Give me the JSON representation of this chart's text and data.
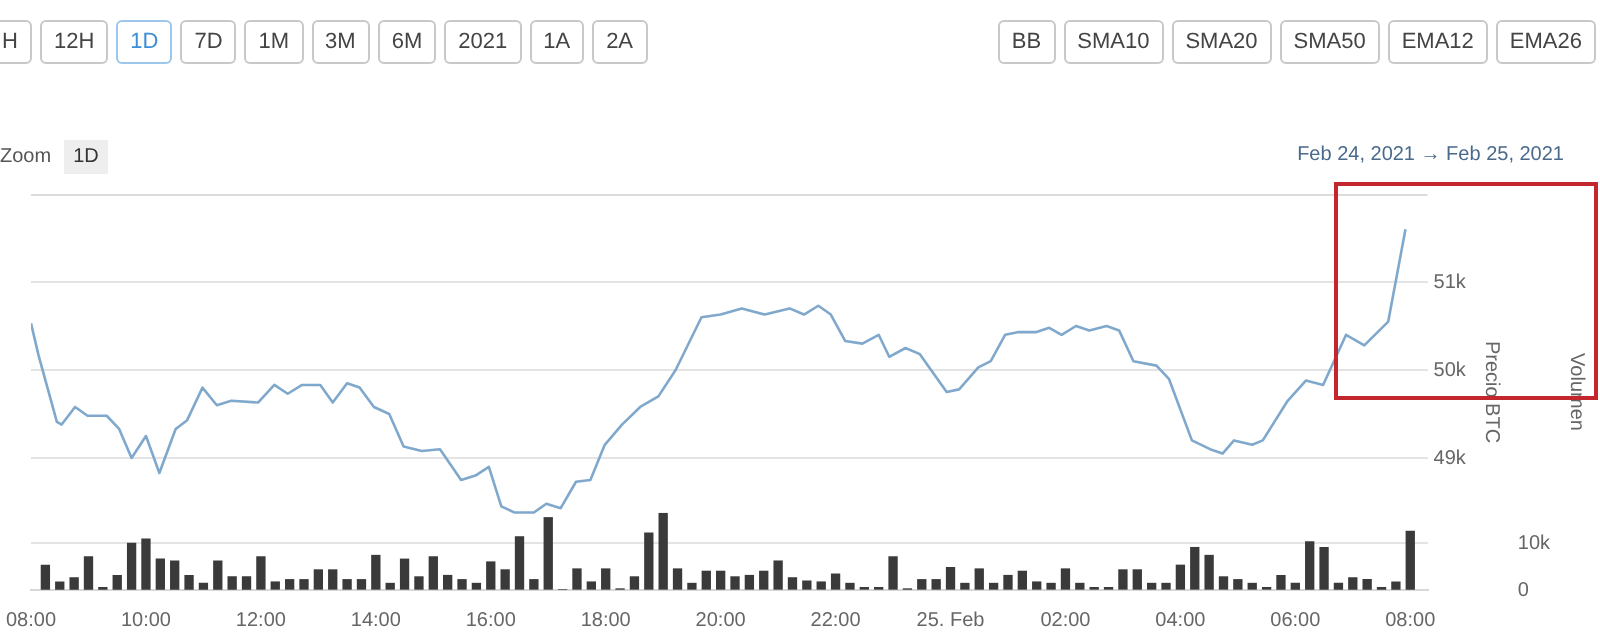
{
  "chart_data": {
    "type": "line",
    "ylabel": "Precio BTC",
    "y2label": "Volumen",
    "annotations": [
      "H",
      "12H",
      "1D",
      "7D",
      "1M",
      "3M",
      "6M",
      "2021",
      "1A",
      "2A",
      "BB",
      "SMA10",
      "SMA20",
      "SMA50",
      "EMA12",
      "EMA26",
      "Zoom",
      "1D",
      "Feb 24, 2021  →  Feb 25, 2021"
    ],
    "xlim": [
      "2021-02-24T08:00",
      "2021-02-25T08:18"
    ],
    "xticks": [
      {
        "value": "2021-02-24T08:00",
        "label": "08:00"
      },
      {
        "value": "2021-02-24T10:00",
        "label": "10:00"
      },
      {
        "value": "2021-02-24T12:00",
        "label": "12:00"
      },
      {
        "value": "2021-02-24T14:00",
        "label": "14:00"
      },
      {
        "value": "2021-02-24T16:00",
        "label": "16:00"
      },
      {
        "value": "2021-02-24T18:00",
        "label": "18:00"
      },
      {
        "value": "2021-02-24T20:00",
        "label": "20:00"
      },
      {
        "value": "2021-02-24T22:00",
        "label": "22:00"
      },
      {
        "value": "2021-02-25T00:00",
        "label": "25. Feb"
      },
      {
        "value": "2021-02-25T02:00",
        "label": "02:00"
      },
      {
        "value": "2021-02-25T04:00",
        "label": "04:00"
      },
      {
        "value": "2021-02-25T06:00",
        "label": "06:00"
      },
      {
        "value": "2021-02-25T08:00",
        "label": "08:00"
      }
    ],
    "ylim": [
      47500,
      52000
    ],
    "yticks": [
      {
        "value": 49000,
        "label": "49k"
      },
      {
        "value": 50000,
        "label": "50k"
      },
      {
        "value": 51000,
        "label": "51k"
      }
    ],
    "y2lim": [
      0,
      85000
    ],
    "y2ticks": [
      {
        "value": 0,
        "label": "0"
      },
      {
        "value": 10000,
        "label": "10k"
      }
    ],
    "grid": "y",
    "legend": false,
    "marker": "none",
    "series": [
      {
        "color": "#7fa8cc",
        "x": [
          "2021-02-24T08:00",
          "2021-02-24T08:08",
          "2021-02-24T08:27",
          "2021-02-24T08:32",
          "2021-02-24T08:46",
          "2021-02-24T08:59",
          "2021-02-24T09:19",
          "2021-02-24T09:32",
          "2021-02-24T09:45",
          "2021-02-24T10:00",
          "2021-02-24T10:14",
          "2021-02-24T10:31",
          "2021-02-24T10:43",
          "2021-02-24T10:59",
          "2021-02-24T11:14",
          "2021-02-24T11:29",
          "2021-02-24T11:57",
          "2021-02-24T12:14",
          "2021-02-24T12:28",
          "2021-02-24T12:43",
          "2021-02-24T13:02",
          "2021-02-24T13:15",
          "2021-02-24T13:30",
          "2021-02-24T13:43",
          "2021-02-24T13:58",
          "2021-02-24T14:14",
          "2021-02-24T14:29",
          "2021-02-24T14:48",
          "2021-02-24T15:07",
          "2021-02-24T15:29",
          "2021-02-24T15:44",
          "2021-02-24T15:58",
          "2021-02-24T16:11",
          "2021-02-24T16:25",
          "2021-02-24T16:45",
          "2021-02-24T16:58",
          "2021-02-24T17:13",
          "2021-02-24T17:29",
          "2021-02-24T17:44",
          "2021-02-24T17:59",
          "2021-02-24T18:17",
          "2021-02-24T18:36",
          "2021-02-24T18:55",
          "2021-02-24T19:13",
          "2021-02-24T19:40",
          "2021-02-24T20:00",
          "2021-02-24T20:22",
          "2021-02-24T20:46",
          "2021-02-24T21:12",
          "2021-02-24T21:27",
          "2021-02-24T21:42",
          "2021-02-24T21:55",
          "2021-02-24T22:10",
          "2021-02-24T22:28",
          "2021-02-24T22:45",
          "2021-02-24T22:56",
          "2021-02-24T23:13",
          "2021-02-24T23:28",
          "2021-02-24T23:56",
          "2021-02-25T00:09",
          "2021-02-25T00:29",
          "2021-02-25T00:42",
          "2021-02-25T00:57",
          "2021-02-25T01:10",
          "2021-02-25T01:29",
          "2021-02-25T01:43",
          "2021-02-25T01:56",
          "2021-02-25T02:11",
          "2021-02-25T02:25",
          "2021-02-25T02:43",
          "2021-02-25T02:56",
          "2021-02-25T03:11",
          "2021-02-25T03:35",
          "2021-02-25T03:48",
          "2021-02-25T04:12",
          "2021-02-25T04:31",
          "2021-02-25T04:44",
          "2021-02-25T04:56",
          "2021-02-25T05:15",
          "2021-02-25T05:26",
          "2021-02-25T05:52",
          "2021-02-25T06:11",
          "2021-02-25T06:29",
          "2021-02-25T06:53",
          "2021-02-25T07:12",
          "2021-02-25T07:37",
          "2021-02-25T07:55"
        ],
        "values": [
          50530,
          50160,
          49410,
          49380,
          49580,
          49480,
          49480,
          49330,
          49000,
          49250,
          48830,
          49330,
          49430,
          49800,
          49600,
          49650,
          49630,
          49830,
          49730,
          49830,
          49830,
          49630,
          49850,
          49800,
          49580,
          49500,
          49130,
          49080,
          49100,
          48750,
          48800,
          48900,
          48450,
          48380,
          48380,
          48480,
          48430,
          48730,
          48750,
          49150,
          49380,
          49580,
          49700,
          50000,
          50600,
          50630,
          50700,
          50630,
          50700,
          50630,
          50730,
          50630,
          50330,
          50300,
          50400,
          50150,
          50250,
          50180,
          49750,
          49780,
          50030,
          50100,
          50400,
          50430,
          50430,
          50480,
          50400,
          50500,
          50450,
          50500,
          50450,
          50100,
          50050,
          49900,
          49200,
          49100,
          49050,
          49200,
          49150,
          49200,
          49650,
          49880,
          49830,
          50400,
          50280,
          50550,
          51600
        ]
      },
      {
        "type": "bar",
        "axis": "y2",
        "color": "#3a3a3a",
        "x": [
          "2021-02-24T08:15",
          "2021-02-24T08:30",
          "2021-02-24T08:45",
          "2021-02-24T09:00",
          "2021-02-24T09:15",
          "2021-02-24T09:30",
          "2021-02-24T09:45",
          "2021-02-24T10:00",
          "2021-02-24T10:15",
          "2021-02-24T10:30",
          "2021-02-24T10:45",
          "2021-02-24T11:00",
          "2021-02-24T11:15",
          "2021-02-24T11:30",
          "2021-02-24T11:45",
          "2021-02-24T12:00",
          "2021-02-24T12:15",
          "2021-02-24T12:30",
          "2021-02-24T12:45",
          "2021-02-24T13:00",
          "2021-02-24T13:15",
          "2021-02-24T13:30",
          "2021-02-24T13:45",
          "2021-02-24T14:00",
          "2021-02-24T14:15",
          "2021-02-24T14:30",
          "2021-02-24T14:45",
          "2021-02-24T15:00",
          "2021-02-24T15:15",
          "2021-02-24T15:30",
          "2021-02-24T15:45",
          "2021-02-24T16:00",
          "2021-02-24T16:15",
          "2021-02-24T16:30",
          "2021-02-24T16:45",
          "2021-02-24T17:00",
          "2021-02-24T17:15",
          "2021-02-24T17:30",
          "2021-02-24T17:45",
          "2021-02-24T18:00",
          "2021-02-24T18:15",
          "2021-02-24T18:30",
          "2021-02-24T18:45",
          "2021-02-24T19:00",
          "2021-02-24T19:15",
          "2021-02-24T19:30",
          "2021-02-24T19:45",
          "2021-02-24T20:00",
          "2021-02-24T20:15",
          "2021-02-24T20:30",
          "2021-02-24T20:45",
          "2021-02-24T21:00",
          "2021-02-24T21:15",
          "2021-02-24T21:30",
          "2021-02-24T21:45",
          "2021-02-24T22:00",
          "2021-02-24T22:15",
          "2021-02-24T22:30",
          "2021-02-24T22:45",
          "2021-02-24T23:00",
          "2021-02-24T23:15",
          "2021-02-24T23:30",
          "2021-02-24T23:45",
          "2021-02-25T00:00",
          "2021-02-25T00:15",
          "2021-02-25T00:30",
          "2021-02-25T00:45",
          "2021-02-25T01:00",
          "2021-02-25T01:15",
          "2021-02-25T01:30",
          "2021-02-25T01:45",
          "2021-02-25T02:00",
          "2021-02-25T02:15",
          "2021-02-25T02:30",
          "2021-02-25T02:45",
          "2021-02-25T03:00",
          "2021-02-25T03:15",
          "2021-02-25T03:30",
          "2021-02-25T03:45",
          "2021-02-25T04:00",
          "2021-02-25T04:15",
          "2021-02-25T04:30",
          "2021-02-25T04:45",
          "2021-02-25T05:00",
          "2021-02-25T05:15",
          "2021-02-25T05:30",
          "2021-02-25T05:45",
          "2021-02-25T06:00",
          "2021-02-25T06:15",
          "2021-02-25T06:30",
          "2021-02-25T06:45",
          "2021-02-25T07:00",
          "2021-02-25T07:15",
          "2021-02-25T07:30",
          "2021-02-25T07:45",
          "2021-02-25T08:00"
        ],
        "values": [
          5300,
          1700,
          2600,
          7100,
          500,
          3100,
          10000,
          10900,
          6600,
          6200,
          3100,
          1400,
          6200,
          2800,
          2800,
          7100,
          1700,
          2200,
          2200,
          4300,
          4300,
          2200,
          2200,
          7400,
          1400,
          6600,
          2800,
          7100,
          3100,
          2200,
          1400,
          6000,
          4300,
          11400,
          2200,
          15500,
          0,
          4500,
          1700,
          4500,
          200,
          2800,
          12200,
          16400,
          4500,
          1400,
          4000,
          4000,
          2800,
          3100,
          4000,
          6200,
          2600,
          1900,
          1700,
          3400,
          1400,
          500,
          500,
          7100,
          200,
          2200,
          2200,
          4800,
          1400,
          4500,
          1400,
          3100,
          4000,
          1700,
          1400,
          4500,
          1400,
          500,
          500,
          4300,
          4300,
          1400,
          1400,
          5300,
          9100,
          7400,
          2800,
          2200,
          1400,
          500,
          3100,
          1400,
          10300,
          9100,
          1400,
          2600,
          2200,
          500,
          1700,
          12600
        ]
      }
    ]
  }
}
